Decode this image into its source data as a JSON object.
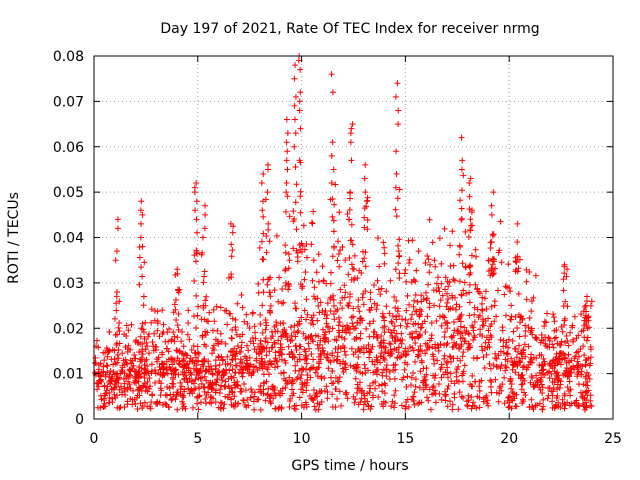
{
  "chart_data": {
    "type": "scatter",
    "title": "Day 197 of 2021, Rate Of TEC Index for receiver nrmg",
    "xlabel": "GPS time / hours",
    "ylabel": "ROTI / TECUs",
    "xlim": [
      0,
      25
    ],
    "ylim": [
      0,
      0.08
    ],
    "x_ticks": [
      0,
      5,
      10,
      15,
      20,
      25
    ],
    "x_tick_labels": [
      "0",
      "5",
      "10",
      "15",
      "20",
      "25"
    ],
    "y_ticks": [
      0,
      0.01,
      0.02,
      0.03,
      0.04,
      0.05,
      0.06,
      0.07,
      0.08
    ],
    "y_tick_labels": [
      "0",
      "0.01",
      "0.02",
      "0.03",
      "0.04",
      "0.05",
      "0.06",
      "0.07",
      "0.08"
    ],
    "grid": true,
    "marker": "plus",
    "series": [
      {
        "name": "ROTI",
        "color": "#ff0000",
        "x_range": [
          0,
          24
        ],
        "baseline_envelope": {
          "x": [
            0,
            2,
            4,
            6,
            8,
            9,
            10,
            11,
            12,
            13,
            14,
            15,
            16,
            17,
            18,
            19,
            20,
            21,
            22,
            23,
            24
          ],
          "median": [
            0.008,
            0.009,
            0.01,
            0.01,
            0.011,
            0.012,
            0.013,
            0.013,
            0.014,
            0.014,
            0.014,
            0.015,
            0.015,
            0.016,
            0.015,
            0.014,
            0.012,
            0.011,
            0.01,
            0.009,
            0.009
          ],
          "upper": [
            0.018,
            0.022,
            0.025,
            0.026,
            0.03,
            0.035,
            0.04,
            0.04,
            0.04,
            0.04,
            0.04,
            0.04,
            0.042,
            0.045,
            0.04,
            0.04,
            0.035,
            0.03,
            0.026,
            0.024,
            0.027
          ]
        },
        "spikes": [
          {
            "x": 1.1,
            "y": [
              0.044,
              0.042,
              0.037,
              0.035,
              0.028
            ]
          },
          {
            "x": 2.3,
            "y": [
              0.048,
              0.046,
              0.045,
              0.043,
              0.04,
              0.038
            ]
          },
          {
            "x": 4.0,
            "y": [
              0.033,
              0.032
            ]
          },
          {
            "x": 4.9,
            "y": [
              0.052,
              0.051,
              0.05,
              0.048,
              0.046,
              0.044
            ]
          },
          {
            "x": 5.3,
            "y": [
              0.047,
              0.045,
              0.042,
              0.04
            ]
          },
          {
            "x": 6.6,
            "y": [
              0.043
            ]
          },
          {
            "x": 8.1,
            "y": [
              0.054,
              0.052,
              0.048,
              0.046
            ]
          },
          {
            "x": 8.4,
            "y": [
              0.056,
              0.055,
              0.05
            ]
          },
          {
            "x": 9.3,
            "y": [
              0.066,
              0.063,
              0.061,
              0.059,
              0.057,
              0.055,
              0.052,
              0.05
            ]
          },
          {
            "x": 9.7,
            "y": [
              0.078,
              0.075,
              0.071,
              0.069,
              0.066,
              0.063,
              0.06
            ]
          },
          {
            "x": 9.9,
            "y": [
              0.08,
              0.079,
              0.077,
              0.072,
              0.07,
              0.068,
              0.064
            ]
          },
          {
            "x": 11.5,
            "y": [
              0.076,
              0.072,
              0.061,
              0.058,
              0.055,
              0.052
            ]
          },
          {
            "x": 12.4,
            "y": [
              0.065,
              0.064,
              0.063,
              0.061,
              0.057,
              0.05
            ]
          },
          {
            "x": 13.1,
            "y": [
              0.056,
              0.053,
              0.05
            ]
          },
          {
            "x": 14.6,
            "y": [
              0.074,
              0.071,
              0.068,
              0.065,
              0.059,
              0.054,
              0.051
            ]
          },
          {
            "x": 17.7,
            "y": [
              0.062,
              0.057,
              0.055
            ]
          },
          {
            "x": 18.1,
            "y": [
              0.053,
              0.052,
              0.049
            ]
          },
          {
            "x": 19.2,
            "y": [
              0.05,
              0.047,
              0.045
            ]
          },
          {
            "x": 20.4,
            "y": [
              0.043,
              0.039
            ]
          },
          {
            "x": 22.7,
            "y": [
              0.034
            ]
          },
          {
            "x": 23.7,
            "y": [
              0.027,
              0.026,
              0.025
            ]
          }
        ],
        "n_baseline_points": 2400
      }
    ]
  }
}
